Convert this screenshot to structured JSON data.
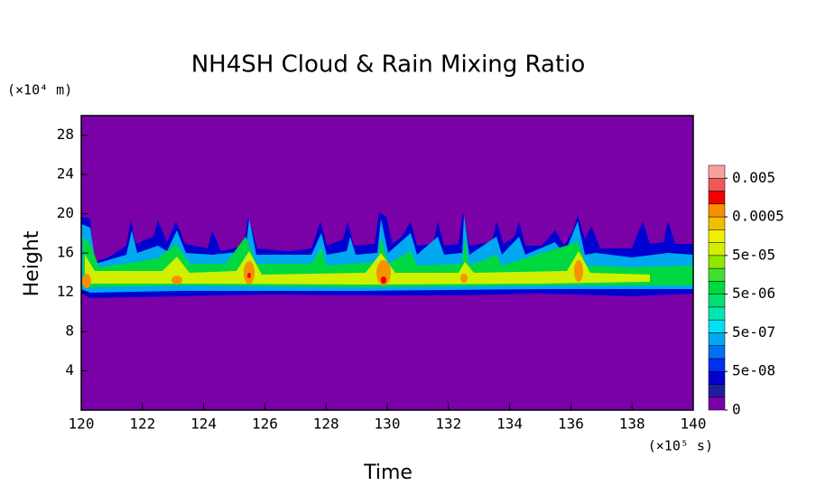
{
  "chart_data": {
    "type": "contour",
    "title": "NH4SH Cloud & Rain Mixing Ratio",
    "x_label": "Time",
    "y_label": "Height",
    "x_unit": "(×10⁵ s)",
    "y_unit": "(×10⁴ m)",
    "xlim": [
      120,
      140
    ],
    "xticks": [
      120,
      122,
      124,
      126,
      128,
      130,
      132,
      134,
      136,
      138,
      140
    ],
    "ylim": [
      0,
      30
    ],
    "yticks": [
      4,
      8,
      12,
      16,
      20,
      24,
      28
    ],
    "colorbar": {
      "colors": [
        "#7a00a8",
        "#1e1ea0",
        "#0000d0",
        "#0030f0",
        "#0070f0",
        "#00a8f0",
        "#00e0f0",
        "#00e8b0",
        "#00e070",
        "#00d840",
        "#40e030",
        "#90e800",
        "#d0f000",
        "#f0f000",
        "#f0c000",
        "#f89000",
        "#f00000",
        "#f05858",
        "#f8a0a0"
      ],
      "ticks": [
        {
          "value": 0,
          "label": "0"
        },
        {
          "value": 5e-08,
          "label": "5e-08"
        },
        {
          "value": 5e-07,
          "label": "5e-07"
        },
        {
          "value": 5e-06,
          "label": "5e-06"
        },
        {
          "value": 5e-05,
          "label": "5e-05"
        },
        0.0005,
        0.005
      ]
    }
  }
}
